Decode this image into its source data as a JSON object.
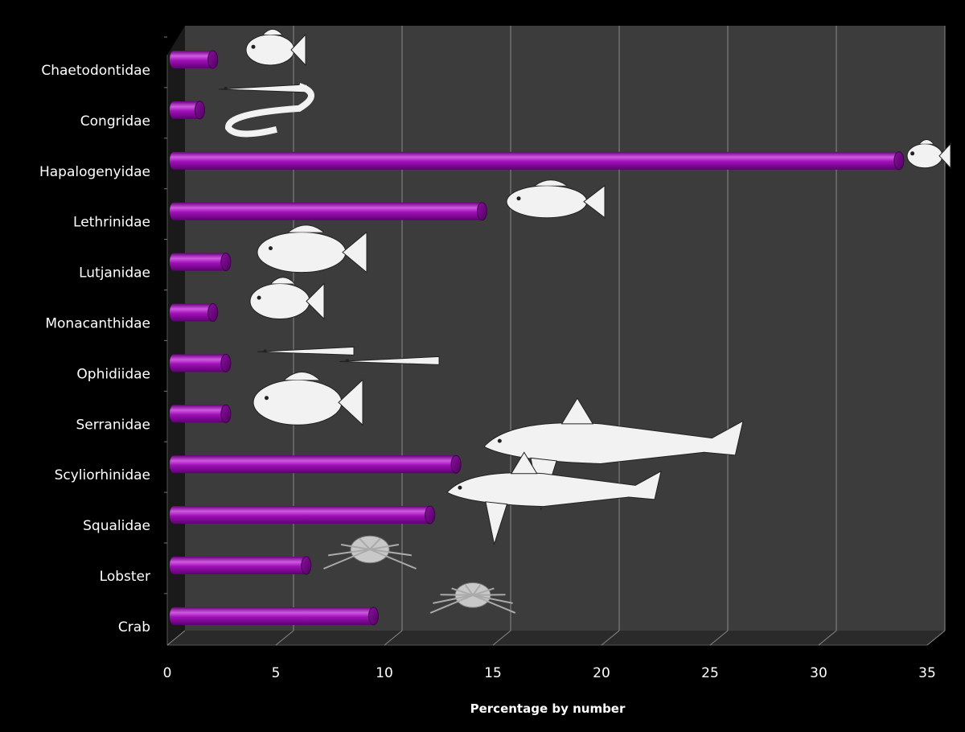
{
  "chart_data": {
    "type": "bar",
    "orientation": "horizontal",
    "categories": [
      "Chaetodontidae",
      "Congridae",
      "Hapalogenyidae",
      "Lethrinidae",
      "Lutjanidae",
      "Monacanthidae",
      "Ophidiidae",
      "Serranidae",
      "Scyliorhinidae",
      "Squalidae",
      "Lobster",
      "Crab"
    ],
    "values": [
      2.1,
      1.5,
      33.7,
      14.5,
      2.7,
      2.1,
      2.7,
      2.7,
      13.3,
      12.1,
      6.4,
      9.5
    ],
    "xlabel": "Percentage by number",
    "ylabel": "",
    "xlim": [
      0,
      35
    ],
    "xticks": [
      "0",
      "5",
      "10",
      "15",
      "20",
      "25",
      "30",
      "35"
    ],
    "grid": "vertical",
    "legend": "none",
    "style": "3d-cylinder",
    "illustrations": [
      "butterflyfish",
      "conger-eel",
      "grunt",
      "emperor-fish",
      "snapper",
      "filefish",
      "cusk-eel",
      "grouper",
      "catshark",
      "dogfish",
      "spiny-lobster",
      "crab"
    ]
  },
  "colors": {
    "background": "#000000",
    "plot_area": "#3c3c3c",
    "floor": "#2a2a2a",
    "gridline": "#8a8a8a",
    "bar": "#a010b8",
    "bar_highlight": "#d05ae0",
    "bar_shadow": "#5c0070",
    "text": "#ffffff",
    "illustration": "#f2f2f2"
  }
}
